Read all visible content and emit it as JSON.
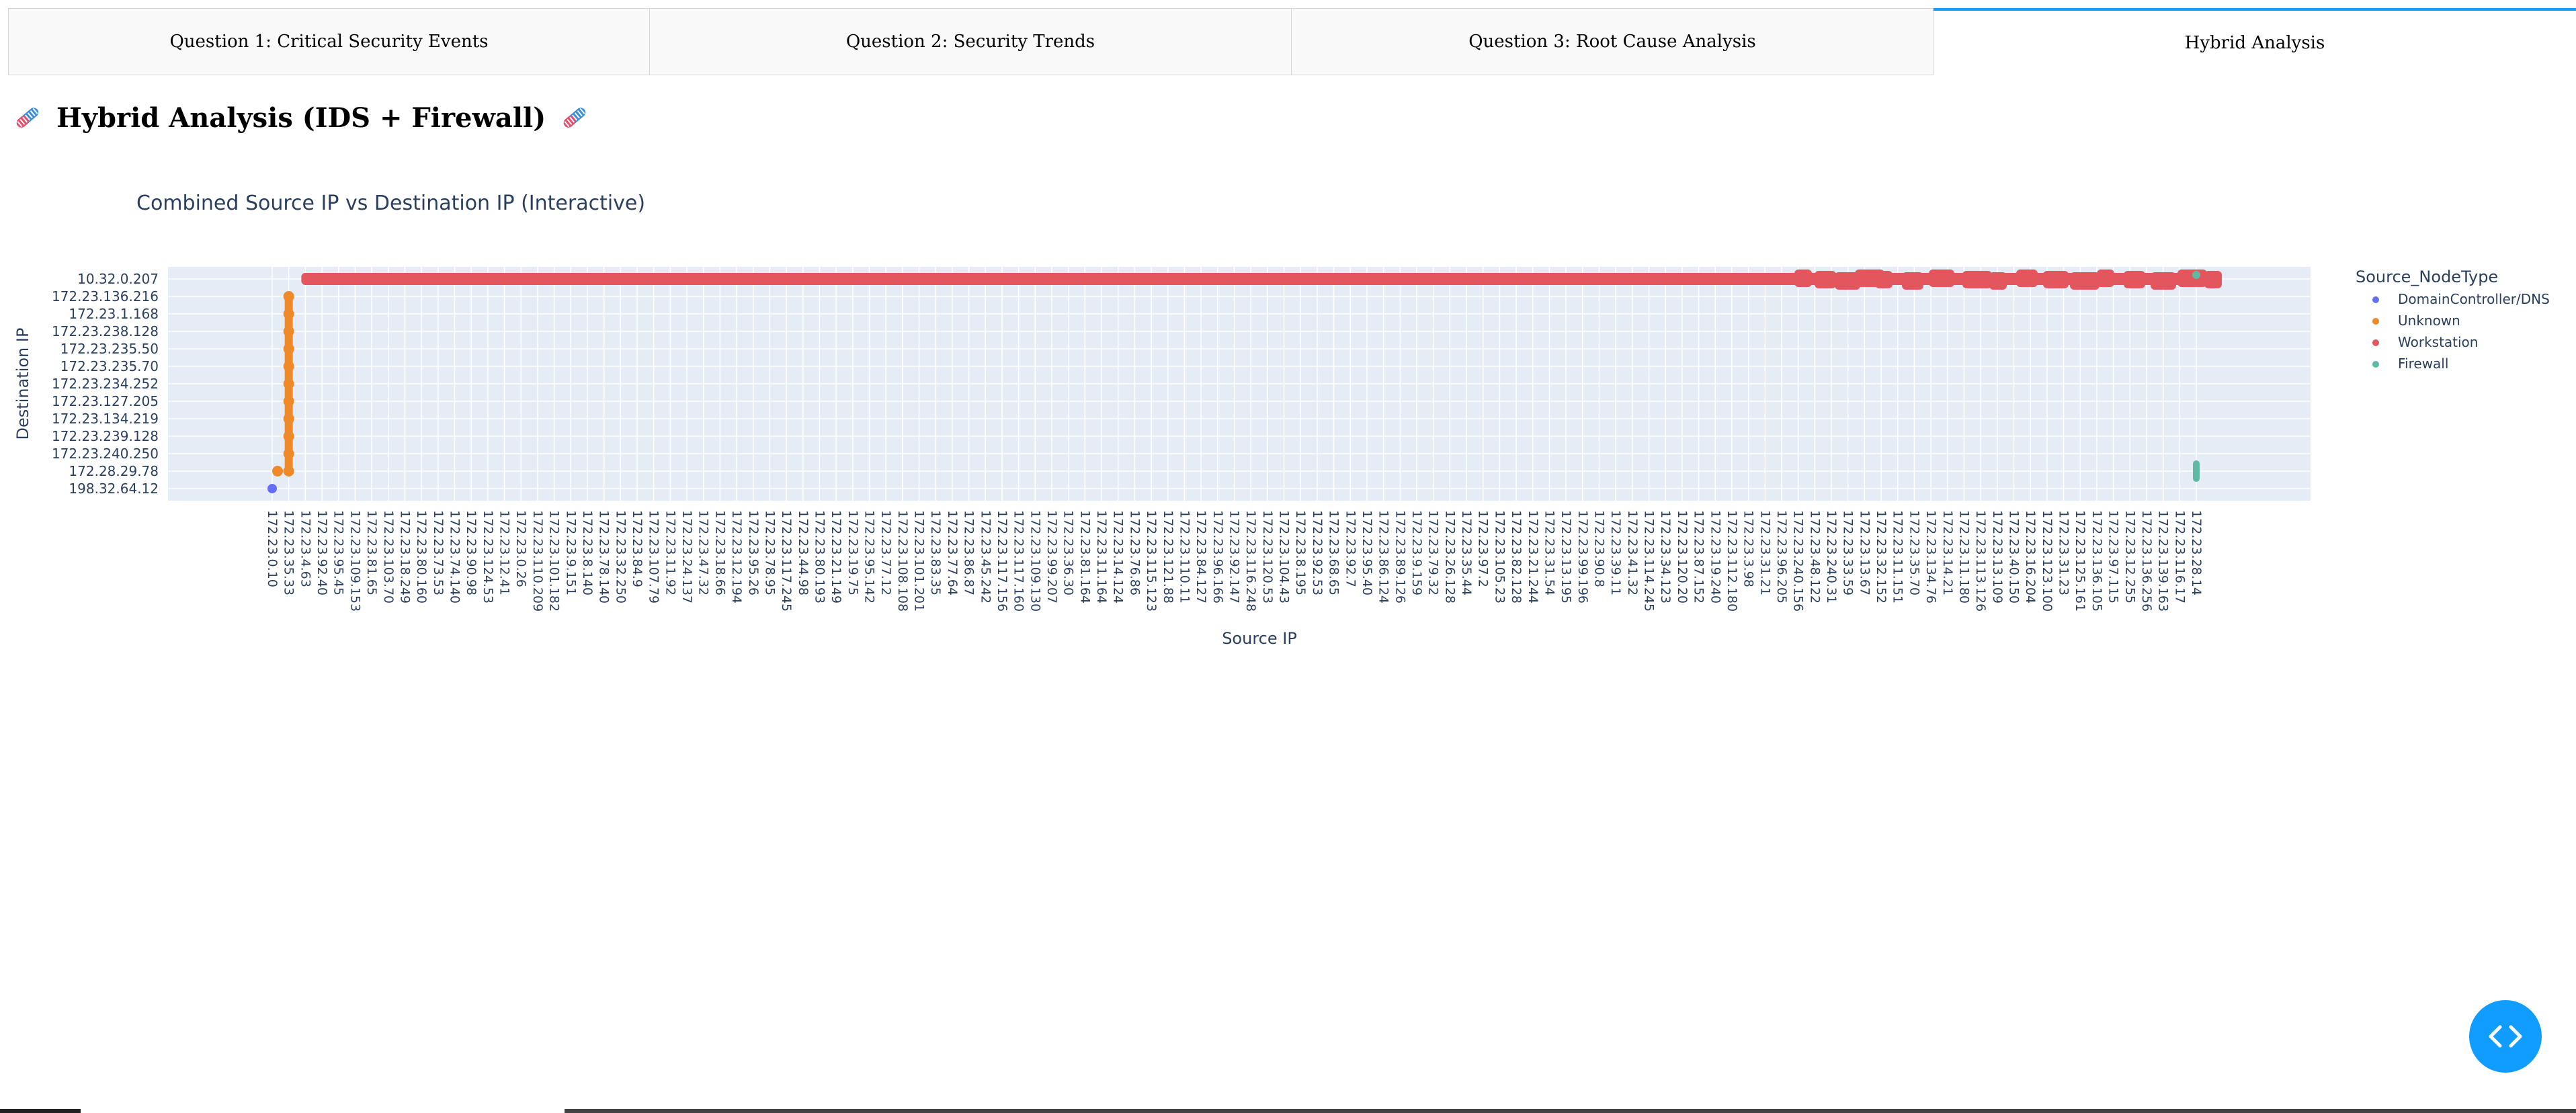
{
  "tabs": [
    {
      "label": "Question 1: Critical Security Events"
    },
    {
      "label": "Question 2: Security Trends"
    },
    {
      "label": "Question 3: Root Cause Analysis"
    },
    {
      "label": "Hybrid Analysis"
    }
  ],
  "heading": {
    "text": "Hybrid Analysis (IDS + Firewall)",
    "icon": "dna-icon"
  },
  "fab": {
    "icon": "code-brackets-icon"
  },
  "colors": {
    "tab_accent": "#119dff",
    "plot_bg": "#e5ecf6"
  },
  "chart_data": {
    "type": "scatter",
    "title": "Combined Source IP vs Destination IP (Interactive)",
    "xlabel": "Source IP",
    "ylabel": "Destination IP",
    "grid": true,
    "legend_title": "Source_NodeType",
    "legend_placement": "top-right",
    "y_categories": [
      "198.32.64.12",
      "172.28.29.78",
      "172.23.240.250",
      "172.23.239.128",
      "172.23.134.219",
      "172.23.127.205",
      "172.23.234.252",
      "172.23.235.70",
      "172.23.235.50",
      "172.23.238.128",
      "172.23.1.168",
      "172.23.136.216",
      "10.32.0.207"
    ],
    "x_tick_labels": [
      "172.23.0.10",
      "172.23.35.33",
      "172.23.4.63",
      "172.23.92.40",
      "172.23.95.45",
      "172.23.109.153",
      "172.23.81.65",
      "172.23.103.70",
      "172.23.18.249",
      "172.23.80.160",
      "172.23.73.53",
      "172.23.74.140",
      "172.23.90.98",
      "172.23.124.53",
      "172.23.12.41",
      "172.23.0.26",
      "172.23.110.209",
      "172.23.101.182",
      "172.23.9.151",
      "172.23.8.140",
      "172.23.78.140",
      "172.23.32.250",
      "172.23.84.9",
      "172.23.107.79",
      "172.23.11.92",
      "172.23.24.137",
      "172.23.47.32",
      "172.23.18.66",
      "172.23.12.194",
      "172.23.95.26",
      "172.23.78.95",
      "172.23.117.245",
      "172.23.44.98",
      "172.23.80.193",
      "172.23.21.149",
      "172.23.19.75",
      "172.23.95.142",
      "172.23.77.12",
      "172.23.108.108",
      "172.23.101.201",
      "172.23.83.35",
      "172.23.77.64",
      "172.23.86.87",
      "172.23.45.242",
      "172.23.117.156",
      "172.23.117.160",
      "172.23.109.130",
      "172.23.99.207",
      "172.23.36.30",
      "172.23.81.164",
      "172.23.11.164",
      "172.23.14.124",
      "172.23.76.86",
      "172.23.115.123",
      "172.23.121.88",
      "172.23.110.11",
      "172.23.84.127",
      "172.23.96.166",
      "172.23.92.147",
      "172.23.116.248",
      "172.23.120.53",
      "172.23.104.43",
      "172.23.8.195",
      "172.23.92.53",
      "172.23.68.65",
      "172.23.92.7",
      "172.23.95.40",
      "172.23.86.124",
      "172.23.89.126",
      "172.23.9.159",
      "172.23.79.32",
      "172.23.26.128",
      "172.23.35.44",
      "172.23.97.2",
      "172.23.105.23",
      "172.23.82.128",
      "172.23.21.244",
      "172.23.31.54",
      "172.23.13.195",
      "172.23.99.196",
      "172.23.90.8",
      "172.23.39.11",
      "172.23.41.32",
      "172.23.114.245",
      "172.23.34.123",
      "172.23.120.20",
      "172.23.87.152",
      "172.23.19.240",
      "172.23.112.180",
      "172.23.3.98",
      "172.23.31.21",
      "172.23.96.205",
      "172.23.240.156",
      "172.23.48.122",
      "172.23.240.31",
      "172.23.33.59",
      "172.23.13.67",
      "172.23.32.152",
      "172.23.11.151",
      "172.23.35.70",
      "172.23.134.76",
      "172.23.14.21",
      "172.23.11.180",
      "172.23.113.126",
      "172.23.13.109",
      "172.23.40.150",
      "172.23.16.204",
      "172.23.123.100",
      "172.23.31.23",
      "172.23.125.161",
      "172.23.136.105",
      "172.23.97.115",
      "172.23.12.255",
      "172.23.136.256",
      "172.23.139.163",
      "172.23.116.17",
      "172.23.28.14"
    ],
    "series": [
      {
        "name": "DomainController/DNS",
        "color": "#636efa",
        "points": [
          {
            "x": "172.23.0.10",
            "y": "198.32.64.12"
          }
        ]
      },
      {
        "name": "Unknown",
        "color": "#ef8a2b",
        "points": [
          {
            "x": "172.23.0.10",
            "y": "172.28.29.78"
          },
          {
            "x": "172.23.35.33",
            "y": "172.28.29.78"
          },
          {
            "x": "172.23.35.33",
            "y": "172.23.240.250"
          },
          {
            "x": "172.23.35.33",
            "y": "172.23.239.128"
          },
          {
            "x": "172.23.35.33",
            "y": "172.23.134.219"
          },
          {
            "x": "172.23.35.33",
            "y": "172.23.127.205"
          },
          {
            "x": "172.23.35.33",
            "y": "172.23.234.252"
          },
          {
            "x": "172.23.35.33",
            "y": "172.23.235.70"
          },
          {
            "x": "172.23.35.33",
            "y": "172.23.235.50"
          },
          {
            "x": "172.23.35.33",
            "y": "172.23.238.128"
          },
          {
            "x": "172.23.35.33",
            "y": "172.23.1.168"
          },
          {
            "x": "172.23.35.33",
            "y": "172.23.136.216"
          }
        ]
      },
      {
        "name": "Workstation",
        "color": "#e4565d",
        "x_range": [
          "172.23.4.63",
          "172.23.28.14"
        ],
        "y": "10.32.0.207"
      },
      {
        "name": "Firewall",
        "color": "#5fb9a5",
        "points": [
          {
            "x": "172.23.28.14",
            "y": "10.32.0.207"
          },
          {
            "x": "172.23.28.14",
            "y": "172.28.29.78"
          }
        ]
      }
    ]
  }
}
